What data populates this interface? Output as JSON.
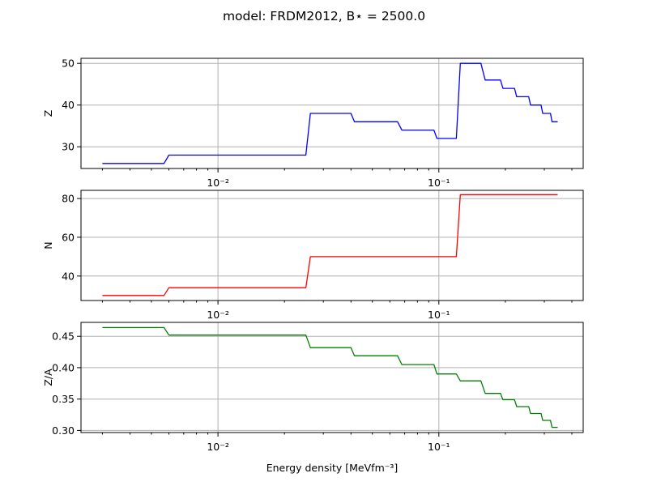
{
  "title": "model: FRDM2012, B⋆ = 2500.0",
  "xlabel": "Energy density [MeVfm⁻³]",
  "x_tick_labels": [
    "10⁻²",
    "10⁻¹"
  ],
  "chart_data": [
    {
      "type": "line",
      "xscale": "log",
      "xlim": [
        0.0024,
        0.45
      ],
      "ylim": [
        24.8,
        51.2
      ],
      "yticks": [
        30,
        40,
        50
      ],
      "ylabel": "Z",
      "grid": true,
      "series": [
        {
          "color": "#0000ff",
          "x": [
            0.003,
            0.0057,
            0.006,
            0.025,
            0.0262,
            0.04,
            0.0415,
            0.065,
            0.068,
            0.095,
            0.098,
            0.12,
            0.125,
            0.155,
            0.162,
            0.19,
            0.195,
            0.22,
            0.225,
            0.255,
            0.26,
            0.29,
            0.295,
            0.32,
            0.325,
            0.345
          ],
          "y": [
            26,
            26,
            28,
            28,
            38,
            38,
            36,
            36,
            34,
            34,
            32,
            32,
            50,
            50,
            46,
            46,
            44,
            44,
            42,
            42,
            40,
            40,
            38,
            38,
            36,
            36
          ]
        }
      ]
    },
    {
      "type": "line",
      "xscale": "log",
      "xlim": [
        0.0024,
        0.45
      ],
      "ylim": [
        27.4,
        84.2
      ],
      "yticks": [
        40,
        60,
        80
      ],
      "ylabel": "N",
      "grid": true,
      "series": [
        {
          "color": "#ff0000",
          "x": [
            0.003,
            0.0057,
            0.006,
            0.025,
            0.0262,
            0.12,
            0.125,
            0.345
          ],
          "y": [
            30,
            30,
            34,
            34,
            50,
            50,
            82,
            82
          ]
        }
      ]
    },
    {
      "type": "line",
      "xscale": "log",
      "xlim": [
        0.0024,
        0.45
      ],
      "ylim": [
        0.2967,
        0.4722
      ],
      "yticks": [
        0.3,
        0.35,
        0.4,
        0.45
      ],
      "ytick_labels": [
        "0.30",
        "0.35",
        "0.40",
        "0.45"
      ],
      "ylabel": "Z/A",
      "grid": true,
      "series": [
        {
          "color": "#008000",
          "x": [
            0.003,
            0.0057,
            0.006,
            0.025,
            0.0262,
            0.04,
            0.0415,
            0.065,
            0.068,
            0.095,
            0.098,
            0.12,
            0.125,
            0.155,
            0.162,
            0.19,
            0.195,
            0.22,
            0.225,
            0.255,
            0.26,
            0.29,
            0.295,
            0.32,
            0.325,
            0.345
          ],
          "y": [
            0.464,
            0.464,
            0.452,
            0.452,
            0.432,
            0.432,
            0.419,
            0.419,
            0.405,
            0.405,
            0.39,
            0.39,
            0.379,
            0.379,
            0.359,
            0.359,
            0.349,
            0.349,
            0.338,
            0.338,
            0.327,
            0.327,
            0.316,
            0.316,
            0.305,
            0.305
          ]
        }
      ]
    }
  ]
}
